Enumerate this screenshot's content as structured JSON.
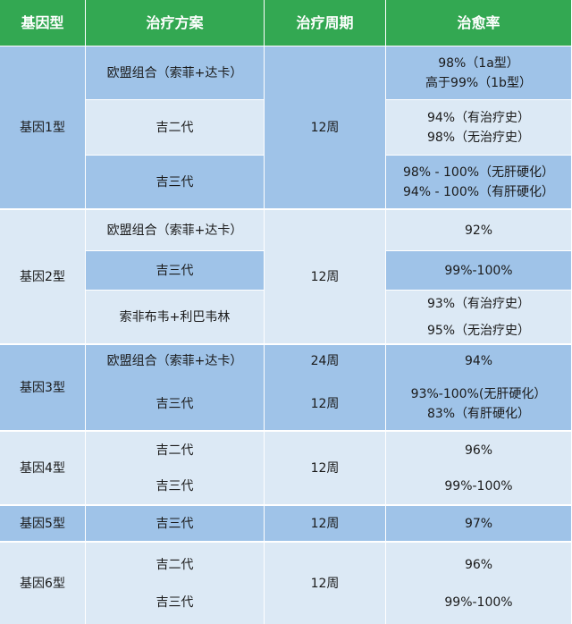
{
  "headers": [
    "基因型",
    "治疗方案",
    "治疗周期",
    "治愈率"
  ],
  "genotype_1": {
    "label": "基因1型",
    "period": "12周",
    "rows": [
      {
        "plan": "欧盟组合（索菲+达卡）",
        "rates": [
          "98%（1a型）",
          "高于99%（1b型）"
        ]
      },
      {
        "plan": "吉二代",
        "rates": [
          "94%（有治疗史）",
          "98%（无治疗史）"
        ]
      },
      {
        "plan": "吉三代",
        "rates": [
          "98% - 100%（无肝硬化）",
          "94% - 100%（有肝硬化）"
        ]
      }
    ]
  },
  "genotype_2": {
    "label": "基因2型",
    "period": "12周",
    "rows": [
      {
        "plan": "欧盟组合（索菲+达卡）",
        "rates": [
          "92%"
        ]
      },
      {
        "plan": "吉三代",
        "rates": [
          "99%-100%"
        ]
      },
      {
        "plan": "索非布韦+利巴韦林",
        "rates": [
          "93%（有治疗史）",
          "95%（无治疗史）"
        ]
      }
    ]
  },
  "genotype_3": {
    "label": "基因3型",
    "rows": [
      {
        "plan": "欧盟组合（索菲+达卡）",
        "period": "24周",
        "rates": [
          "94%"
        ]
      },
      {
        "plan": "吉三代",
        "period": "12周",
        "rates": [
          "93%-100%(无肝硬化）",
          "83%（有肝硬化）"
        ]
      }
    ]
  },
  "genotype_4": {
    "label": "基因4型",
    "period": "12周",
    "rows": [
      {
        "plan": "吉二代",
        "rates": [
          "96%"
        ]
      },
      {
        "plan": "吉三代",
        "rates": [
          "99%-100%"
        ]
      }
    ]
  },
  "genotype_5": {
    "label": "基因5型",
    "period": "12周",
    "rows": [
      {
        "plan": "吉三代",
        "rates": [
          "97%"
        ]
      }
    ]
  },
  "genotype_6": {
    "label": "基因6型",
    "period": "12周",
    "rows": [
      {
        "plan": "吉二代",
        "rates": [
          "96%"
        ]
      },
      {
        "plan": "吉三代",
        "rates": [
          "99%-100%"
        ]
      }
    ]
  }
}
